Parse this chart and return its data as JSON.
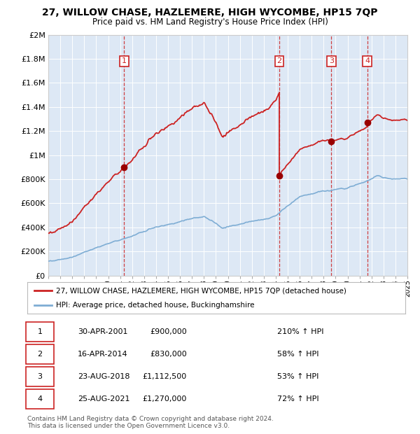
{
  "title": "27, WILLOW CHASE, HAZLEMERE, HIGH WYCOMBE, HP15 7QP",
  "subtitle": "Price paid vs. HM Land Registry's House Price Index (HPI)",
  "x_start_year": 1995,
  "x_end_year": 2025,
  "y_min": 0,
  "y_max": 2000000,
  "y_ticks": [
    0,
    200000,
    400000,
    600000,
    800000,
    1000000,
    1200000,
    1400000,
    1600000,
    1800000,
    2000000
  ],
  "y_tick_labels": [
    "£0",
    "£200K",
    "£400K",
    "£600K",
    "£800K",
    "£1M",
    "£1.2M",
    "£1.4M",
    "£1.6M",
    "£1.8M",
    "£2M"
  ],
  "hpi_color": "#7eadd4",
  "price_color": "#cc2222",
  "bg_color": "#dde8f5",
  "grid_color": "#ffffff",
  "sale_points": [
    {
      "year": 2001.33,
      "price": 900000,
      "label": "1"
    },
    {
      "year": 2014.29,
      "price": 830000,
      "label": "2"
    },
    {
      "year": 2018.64,
      "price": 1112500,
      "label": "3"
    },
    {
      "year": 2021.65,
      "price": 1270000,
      "label": "4"
    }
  ],
  "sale_vlines": [
    2001.33,
    2014.29,
    2018.64,
    2021.65
  ],
  "table_rows": [
    [
      "1",
      "30-APR-2001",
      "£900,000",
      "210% ↑ HPI"
    ],
    [
      "2",
      "16-APR-2014",
      "£830,000",
      "58% ↑ HPI"
    ],
    [
      "3",
      "23-AUG-2018",
      "£1,112,500",
      "53% ↑ HPI"
    ],
    [
      "4",
      "25-AUG-2021",
      "£1,270,000",
      "72% ↑ HPI"
    ]
  ],
  "legend_price_label": "27, WILLOW CHASE, HAZLEMERE, HIGH WYCOMBE, HP15 7QP (detached house)",
  "legend_hpi_label": "HPI: Average price, detached house, Buckinghamshire",
  "footnote": "Contains HM Land Registry data © Crown copyright and database right 2024.\nThis data is licensed under the Open Government Licence v3.0."
}
